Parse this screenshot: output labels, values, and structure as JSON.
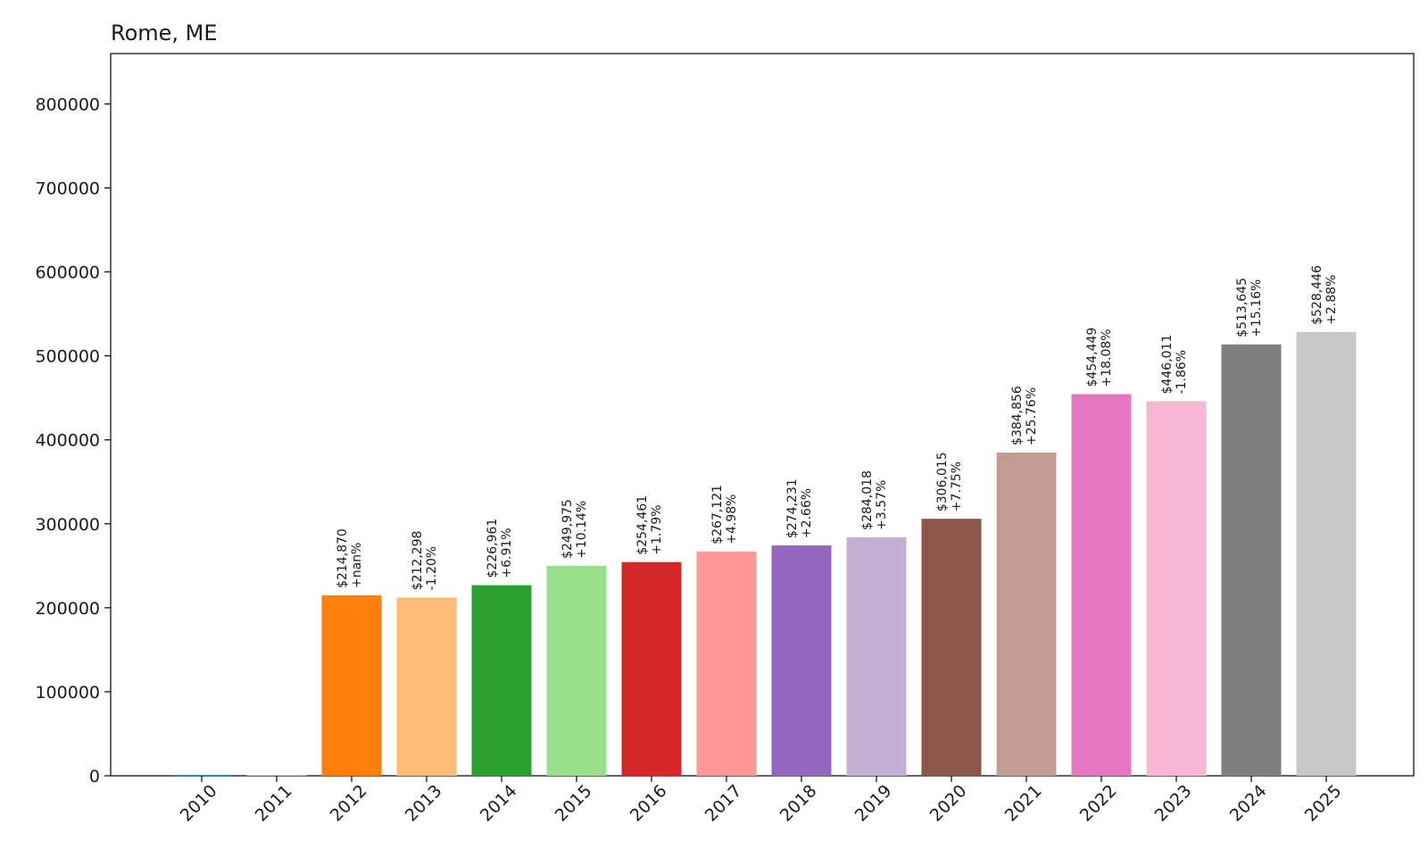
{
  "chart_data": {
    "type": "bar",
    "title": "Rome, ME",
    "xlabel": "",
    "ylabel": "",
    "ylim": [
      0,
      860000
    ],
    "yticks": [
      0,
      100000,
      200000,
      300000,
      400000,
      500000,
      600000,
      700000,
      800000
    ],
    "ytick_labels": [
      "0",
      "100000",
      "200000",
      "300000",
      "400000",
      "500000",
      "600000",
      "700000",
      "800000"
    ],
    "categories": [
      "2010",
      "2011",
      "2012",
      "2013",
      "2014",
      "2015",
      "2016",
      "2017",
      "2018",
      "2019",
      "2020",
      "2021",
      "2022",
      "2023",
      "2024",
      "2025"
    ],
    "values": [
      0,
      0,
      214870,
      212298,
      226961,
      249975,
      254461,
      267121,
      274231,
      284018,
      306015,
      384856,
      454449,
      446011,
      513645,
      528446
    ],
    "value_labels": [
      "",
      "",
      "$214,870",
      "$212,298",
      "$226,961",
      "$249,975",
      "$254,461",
      "$267,121",
      "$274,231",
      "$284,018",
      "$306,015",
      "$384,856",
      "$454,449",
      "$446,011",
      "$513,645",
      "$528,446"
    ],
    "change_labels": [
      "",
      "",
      "+nan%",
      "-1.20%",
      "+6.91%",
      "+10.14%",
      "+1.79%",
      "+4.98%",
      "+2.66%",
      "+3.57%",
      "+7.75%",
      "+25.76%",
      "+18.08%",
      "-1.86%",
      "+15.16%",
      "+2.88%"
    ],
    "colors": [
      "#1f77b4",
      "#aec7e8",
      "#ff7f0e",
      "#ffbb78",
      "#2ca02c",
      "#98df8a",
      "#d62728",
      "#ff9896",
      "#9467bd",
      "#c5b0d5",
      "#8c564b",
      "#c49c94",
      "#e377c2",
      "#f7b6d2",
      "#7f7f7f",
      "#c7c7c7"
    ],
    "grid": false,
    "legend": "none"
  }
}
